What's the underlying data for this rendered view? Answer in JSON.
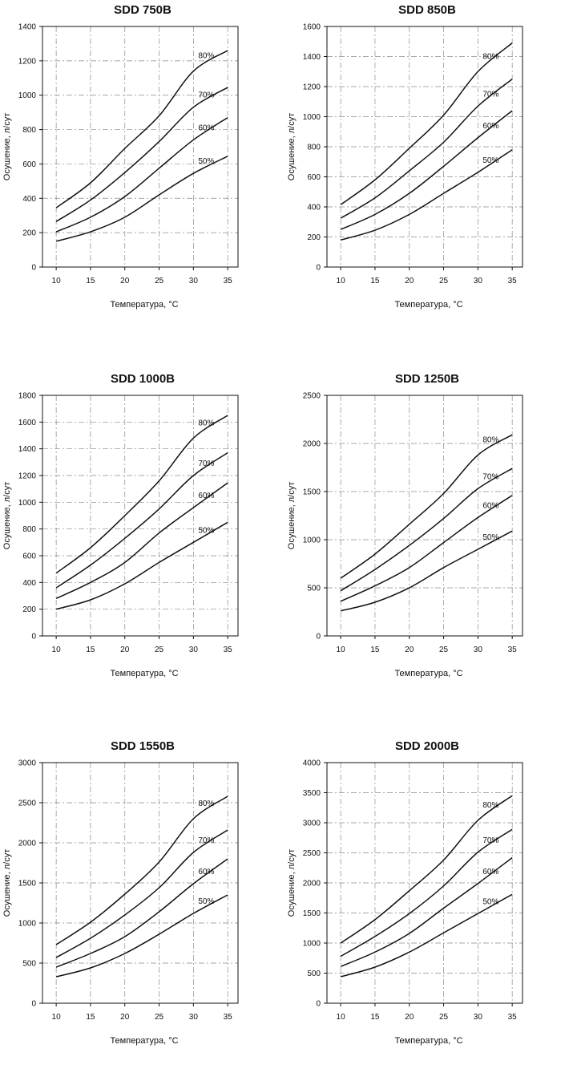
{
  "chart_data": [
    {
      "type": "line",
      "title": "SDD 750B",
      "xlabel": "Температура, °C",
      "ylabel": "Осушение, л/сут",
      "x": [
        10,
        15,
        20,
        25,
        30,
        35
      ],
      "xlim": [
        8,
        36.5
      ],
      "ylim": [
        0,
        1400
      ],
      "yticks": [
        0,
        200,
        400,
        600,
        800,
        1000,
        1200,
        1400
      ],
      "grid": true,
      "series": [
        {
          "name": "80%",
          "values": [
            345,
            490,
            690,
            880,
            1140,
            1260
          ]
        },
        {
          "name": "70%",
          "values": [
            265,
            390,
            550,
            730,
            930,
            1045
          ]
        },
        {
          "name": "60%",
          "values": [
            205,
            290,
            410,
            575,
            740,
            870
          ]
        },
        {
          "name": "50%",
          "values": [
            150,
            205,
            290,
            420,
            545,
            645
          ]
        }
      ]
    },
    {
      "type": "line",
      "title": "SDD 850B",
      "xlabel": "Температура, °C",
      "ylabel": "Осушение, л/сут",
      "x": [
        10,
        15,
        20,
        25,
        30,
        35
      ],
      "xlim": [
        8,
        36.5
      ],
      "ylim": [
        0,
        1600
      ],
      "yticks": [
        0,
        200,
        400,
        600,
        800,
        1000,
        1200,
        1400,
        1600
      ],
      "grid": true,
      "series": [
        {
          "name": "80%",
          "values": [
            415,
            580,
            790,
            1010,
            1300,
            1490
          ]
        },
        {
          "name": "70%",
          "values": [
            325,
            460,
            640,
            830,
            1070,
            1250
          ]
        },
        {
          "name": "60%",
          "values": [
            250,
            350,
            490,
            670,
            860,
            1040
          ]
        },
        {
          "name": "50%",
          "values": [
            180,
            245,
            350,
            490,
            630,
            780
          ]
        }
      ]
    },
    {
      "type": "line",
      "title": "SDD 1000B",
      "xlabel": "Температура, °C",
      "ylabel": "Осушение, л/сут",
      "x": [
        10,
        15,
        20,
        25,
        30,
        35
      ],
      "xlim": [
        8,
        36.5
      ],
      "ylim": [
        0,
        1800
      ],
      "yticks": [
        0,
        200,
        400,
        600,
        800,
        1000,
        1200,
        1400,
        1600,
        1800
      ],
      "grid": true,
      "series": [
        {
          "name": "80%",
          "values": [
            470,
            660,
            900,
            1160,
            1480,
            1650
          ]
        },
        {
          "name": "70%",
          "values": [
            360,
            530,
            730,
            950,
            1200,
            1370
          ]
        },
        {
          "name": "60%",
          "values": [
            280,
            400,
            550,
            770,
            960,
            1145
          ]
        },
        {
          "name": "50%",
          "values": [
            200,
            270,
            390,
            550,
            700,
            850
          ]
        }
      ]
    },
    {
      "type": "line",
      "title": "SDD 1250B",
      "xlabel": "Температура, °C",
      "ylabel": "Осушение, л/сут",
      "x": [
        10,
        15,
        20,
        25,
        30,
        35
      ],
      "xlim": [
        8,
        36.5
      ],
      "ylim": [
        0,
        2500
      ],
      "yticks": [
        0,
        500,
        1000,
        1500,
        2000,
        2500
      ],
      "grid": true,
      "series": [
        {
          "name": "80%",
          "values": [
            600,
            850,
            1160,
            1480,
            1880,
            2090
          ]
        },
        {
          "name": "70%",
          "values": [
            470,
            690,
            940,
            1220,
            1530,
            1740
          ]
        },
        {
          "name": "60%",
          "values": [
            360,
            520,
            710,
            970,
            1230,
            1460
          ]
        },
        {
          "name": "50%",
          "values": [
            260,
            350,
            500,
            710,
            900,
            1090
          ]
        }
      ]
    },
    {
      "type": "line",
      "title": "SDD 1550B",
      "xlabel": "Температура, °C",
      "ylabel": "Осушение, л/сут",
      "x": [
        10,
        15,
        20,
        25,
        30,
        35
      ],
      "xlim": [
        8,
        36.5
      ],
      "ylim": [
        0,
        3000
      ],
      "yticks": [
        0,
        500,
        1000,
        1500,
        2000,
        2500,
        3000
      ],
      "grid": true,
      "series": [
        {
          "name": "80%",
          "values": [
            730,
            1010,
            1360,
            1760,
            2300,
            2580
          ]
        },
        {
          "name": "70%",
          "values": [
            570,
            810,
            1100,
            1440,
            1880,
            2160
          ]
        },
        {
          "name": "60%",
          "values": [
            450,
            620,
            830,
            1140,
            1490,
            1800
          ]
        },
        {
          "name": "50%",
          "values": [
            330,
            440,
            620,
            860,
            1120,
            1350
          ]
        }
      ]
    },
    {
      "type": "line",
      "title": "SDD 2000B",
      "xlabel": "Температура, °C",
      "ylabel": "Осушение, л/сут",
      "x": [
        10,
        15,
        20,
        25,
        30,
        35
      ],
      "xlim": [
        8,
        36.5
      ],
      "ylim": [
        0,
        4000
      ],
      "yticks": [
        0,
        500,
        1000,
        1500,
        2000,
        2500,
        3000,
        3500,
        4000
      ],
      "grid": true,
      "series": [
        {
          "name": "80%",
          "values": [
            1000,
            1390,
            1870,
            2380,
            3040,
            3450
          ]
        },
        {
          "name": "70%",
          "values": [
            780,
            1110,
            1490,
            1950,
            2510,
            2890
          ]
        },
        {
          "name": "60%",
          "values": [
            610,
            850,
            1160,
            1580,
            1990,
            2420
          ]
        },
        {
          "name": "50%",
          "values": [
            440,
            600,
            850,
            1170,
            1490,
            1810
          ]
        }
      ]
    }
  ]
}
